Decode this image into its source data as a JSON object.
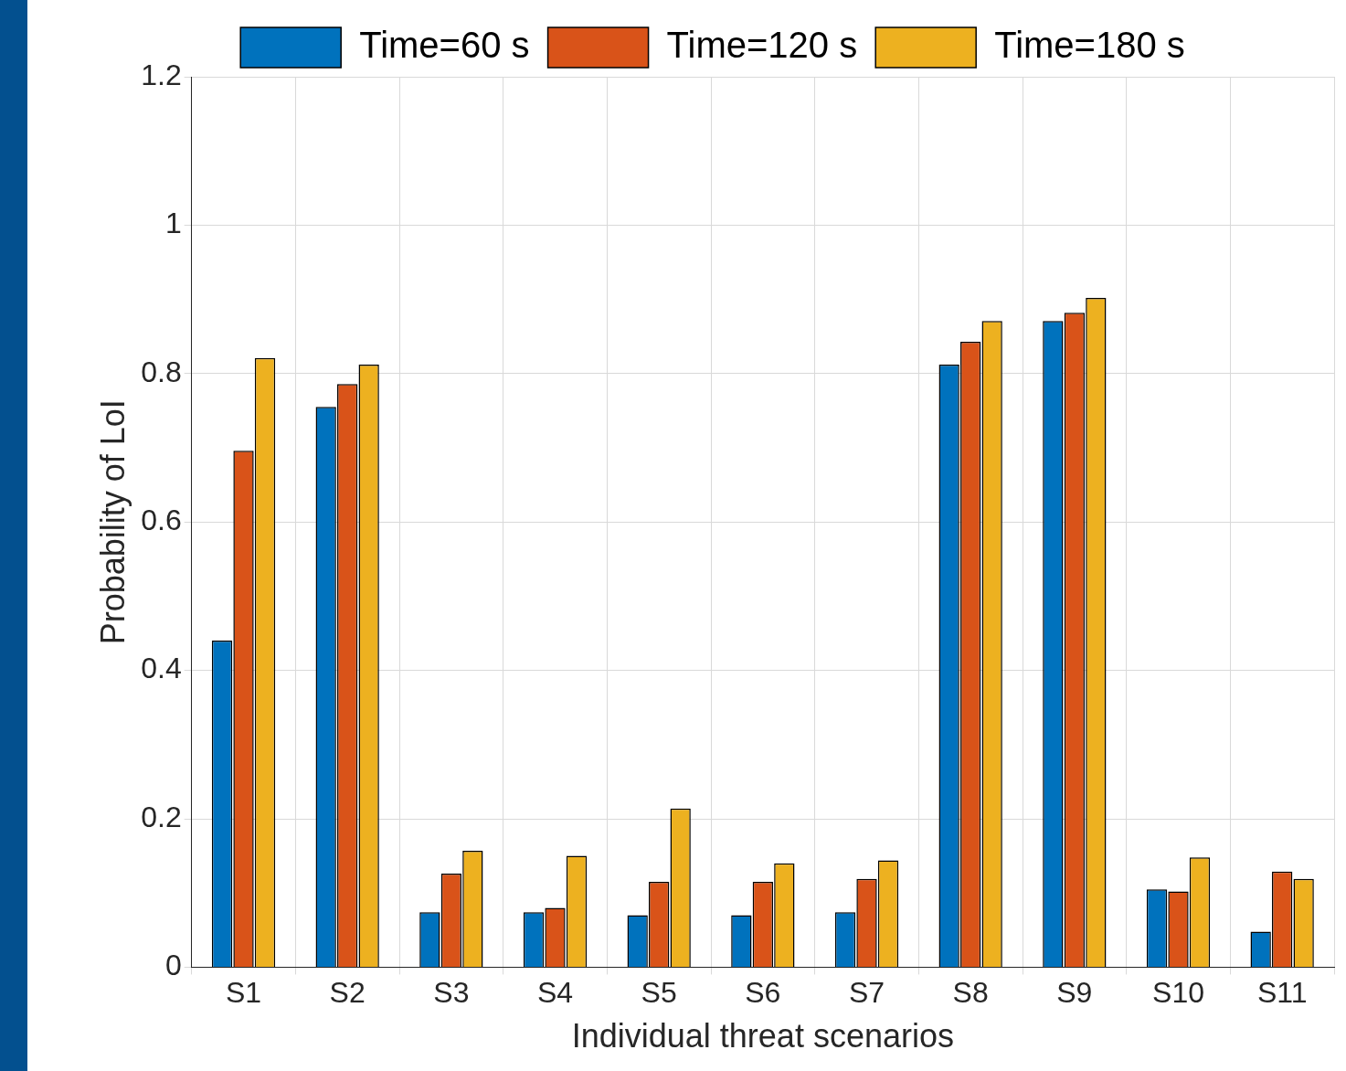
{
  "chart_data": {
    "type": "bar",
    "xlabel": "Individual threat scenarios",
    "ylabel": "Probability of LoI",
    "categories": [
      "S1",
      "S2",
      "S3",
      "S4",
      "S5",
      "S6",
      "S7",
      "S8",
      "S9",
      "S10",
      "S11"
    ],
    "series": [
      {
        "name": "Time=60 s",
        "color": "#0072bd",
        "values": [
          0.44,
          0.755,
          0.074,
          0.074,
          0.07,
          0.07,
          0.074,
          0.812,
          0.871,
          0.105,
          0.048
        ]
      },
      {
        "name": "Time=120 s",
        "color": "#d95319",
        "values": [
          0.696,
          0.786,
          0.126,
          0.08,
          0.115,
          0.115,
          0.119,
          0.843,
          0.882,
          0.102,
          0.129
        ]
      },
      {
        "name": "Time=180 s",
        "color": "#edb120",
        "values": [
          0.821,
          0.812,
          0.157,
          0.15,
          0.214,
          0.14,
          0.144,
          0.871,
          0.902,
          0.148,
          0.119
        ]
      }
    ],
    "ylim": [
      0,
      1.2
    ],
    "yticks": [
      0,
      0.2,
      0.4,
      0.6,
      0.8,
      1,
      1.2
    ],
    "grid": true,
    "legend": "top"
  }
}
